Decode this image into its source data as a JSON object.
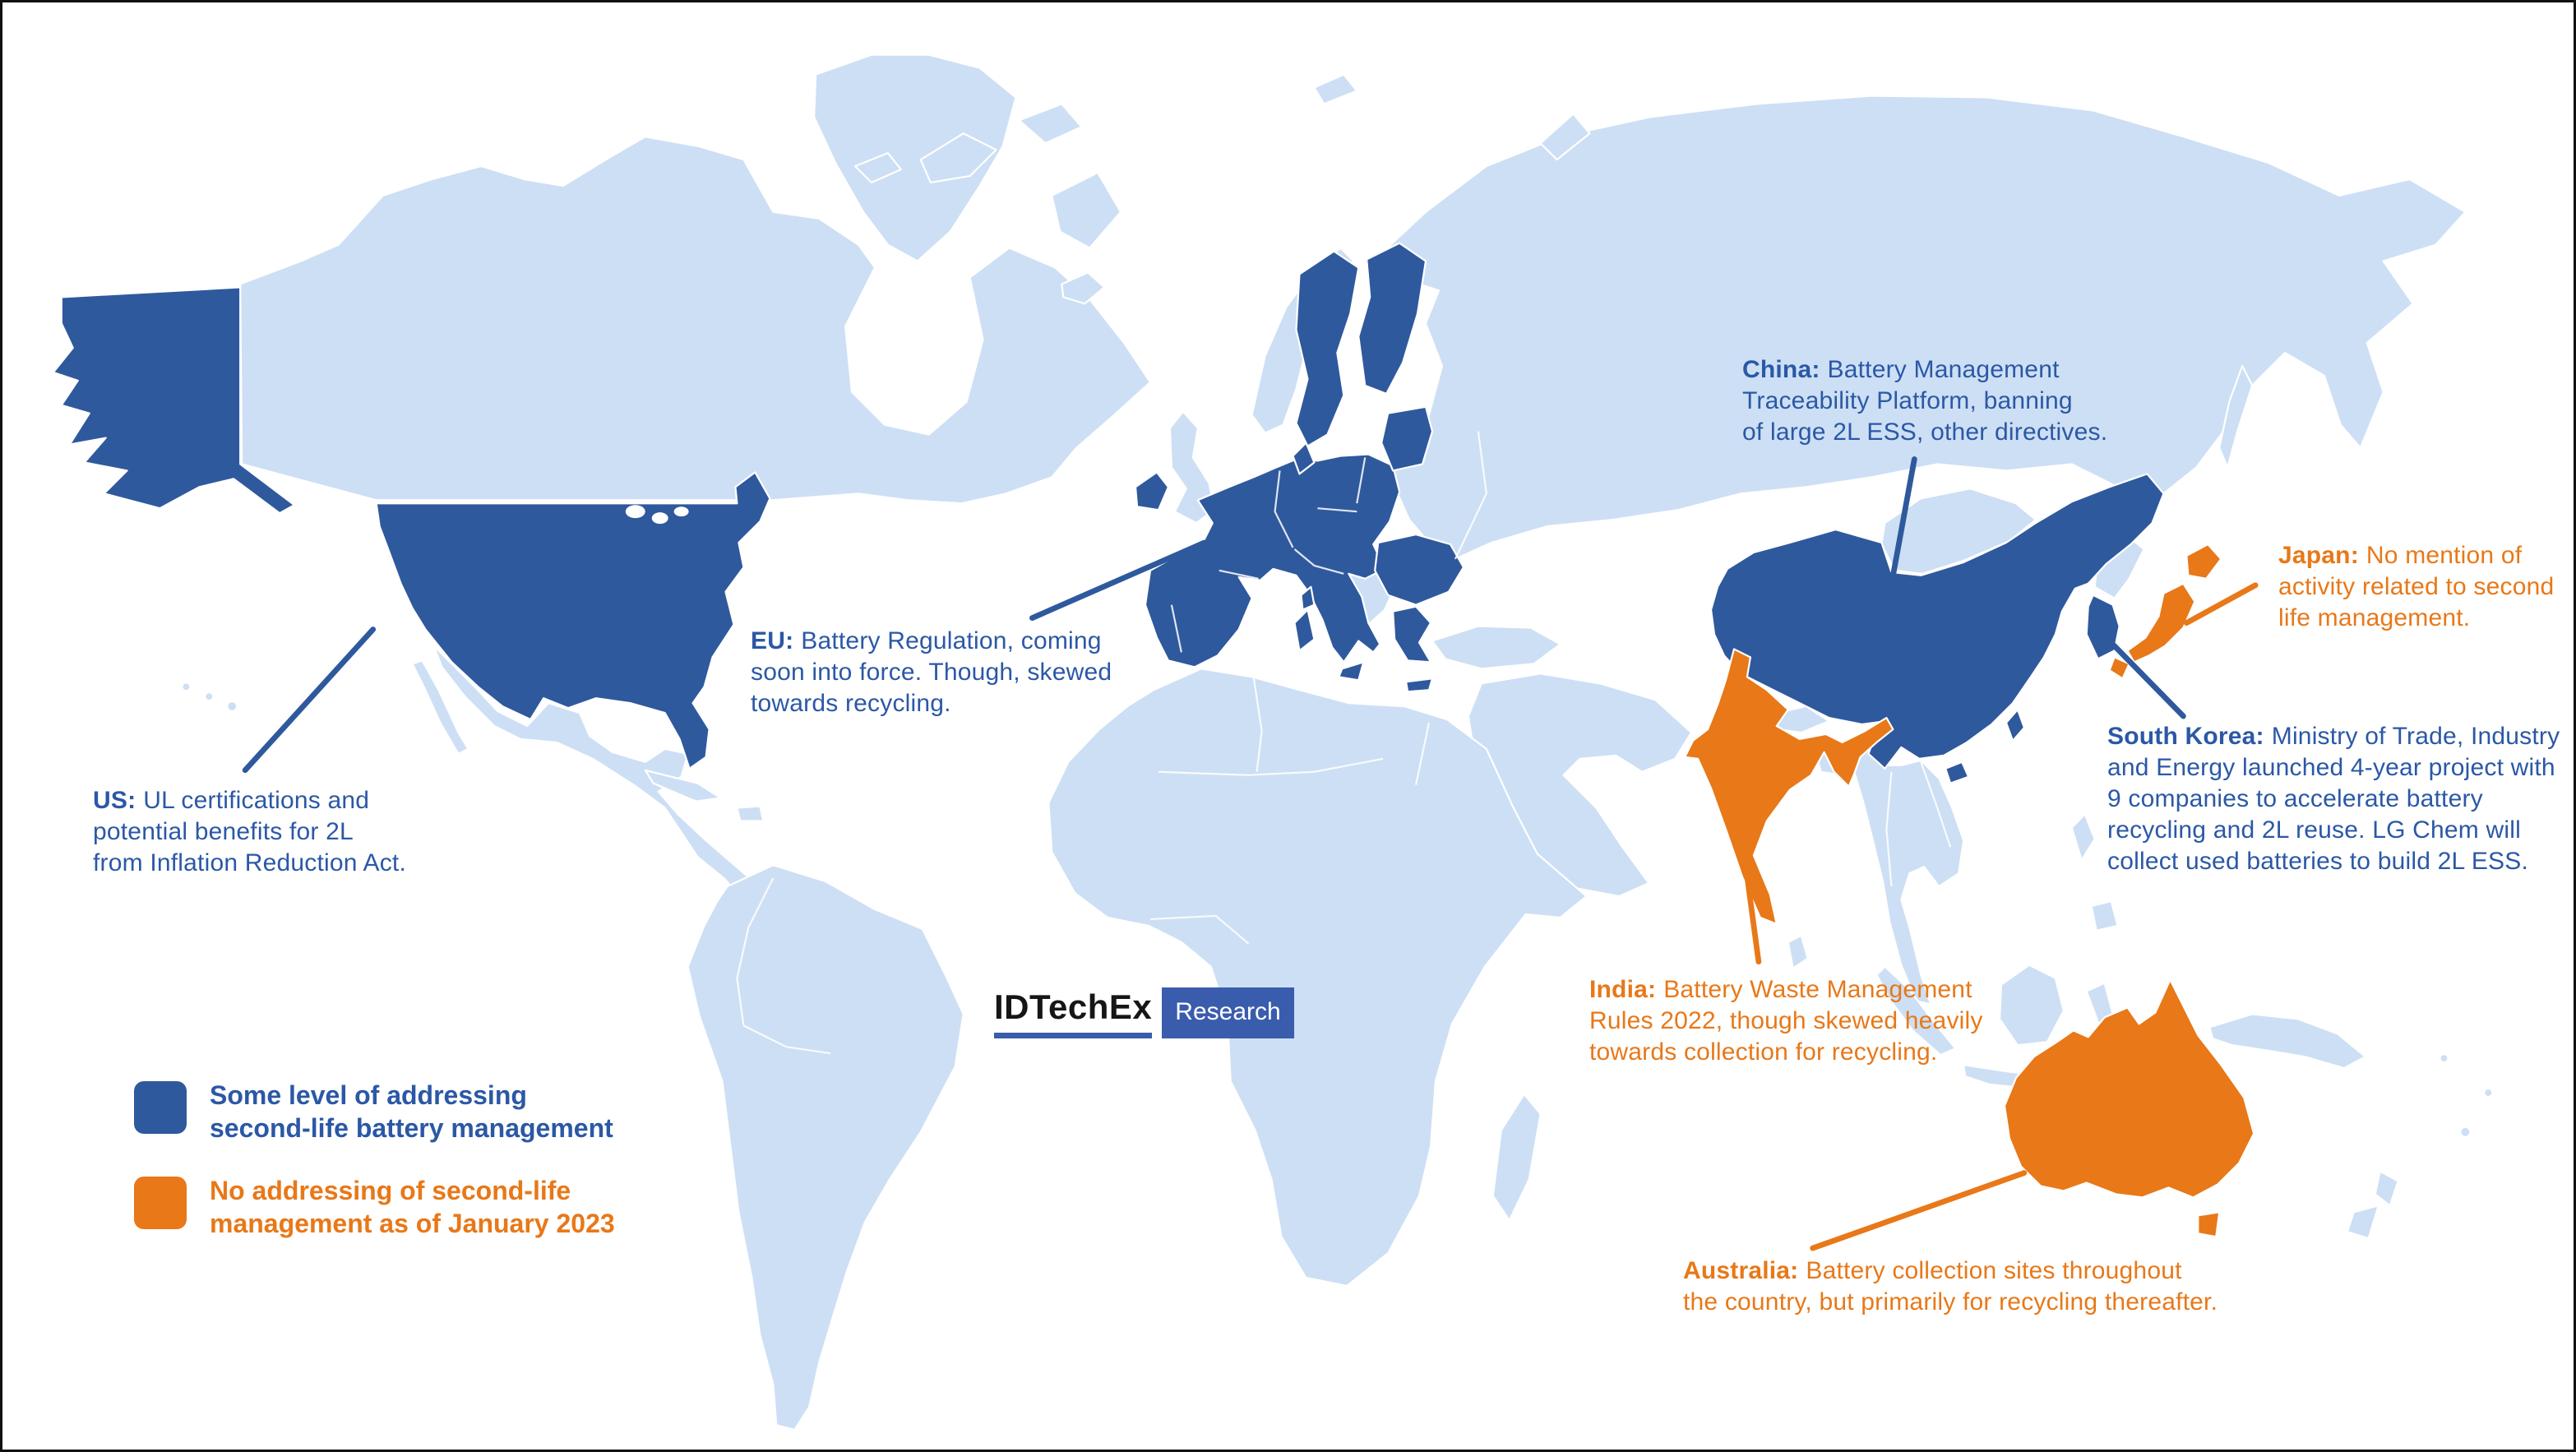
{
  "colors": {
    "addressing_blue": "#2F599D",
    "annotation_blue": "#2B58A6",
    "no_addressing_orange": "#E87818",
    "base_land": "#CDDFF4",
    "logo_navy": "#3A5CAD",
    "background": "#FFFFFF"
  },
  "legend": {
    "items": [
      {
        "id": "addressing",
        "color_key": "addressing_blue",
        "lines": [
          "Some level of addressing",
          "second-life battery management"
        ]
      },
      {
        "id": "no-addressing",
        "color_key": "no_addressing_orange",
        "lines": [
          "No addressing of second-life",
          "management as of January 2023"
        ]
      }
    ]
  },
  "annotations": {
    "us": {
      "label": "US:",
      "status": "addressing",
      "lines": [
        "UL certifications and",
        "potential benefits for 2L",
        "from Inflation Reduction Act."
      ]
    },
    "eu": {
      "label": "EU:",
      "status": "addressing",
      "lines": [
        "Battery Regulation, coming",
        "soon into force. Though, skewed",
        "towards recycling."
      ]
    },
    "china": {
      "label": "China:",
      "status": "addressing",
      "lines": [
        "Battery Management",
        "Traceability Platform, banning",
        "of large 2L ESS, other directives."
      ]
    },
    "japan": {
      "label": "Japan:",
      "status": "no-addressing",
      "lines": [
        "No mention of",
        "activity related to second",
        "life management."
      ]
    },
    "south_korea": {
      "label": "South Korea:",
      "status": "addressing",
      "lines": [
        "Ministry of Trade, Industry",
        "and Energy launched 4-year project with",
        "9 companies to accelerate battery",
        "recycling and 2L reuse. LG Chem will",
        "collect used batteries to build 2L ESS."
      ]
    },
    "india": {
      "label": "India:",
      "status": "no-addressing",
      "lines": [
        "Battery Waste Management",
        "Rules 2022, though skewed heavily",
        "towards collection for recycling."
      ]
    },
    "australia": {
      "label": "Australia:",
      "status": "no-addressing",
      "lines": [
        "Battery collection sites throughout",
        "the country, but primarily for recycling thereafter."
      ]
    }
  },
  "map_regions": [
    {
      "region": "United States (incl. Alaska)",
      "status": "addressing"
    },
    {
      "region": "European Union member states",
      "status": "addressing"
    },
    {
      "region": "China",
      "status": "addressing"
    },
    {
      "region": "South Korea",
      "status": "addressing"
    },
    {
      "region": "Japan",
      "status": "no-addressing"
    },
    {
      "region": "India",
      "status": "no-addressing"
    },
    {
      "region": "Australia",
      "status": "no-addressing"
    }
  ],
  "logo": {
    "brand": "IDTechEx",
    "suffix": "Research"
  }
}
